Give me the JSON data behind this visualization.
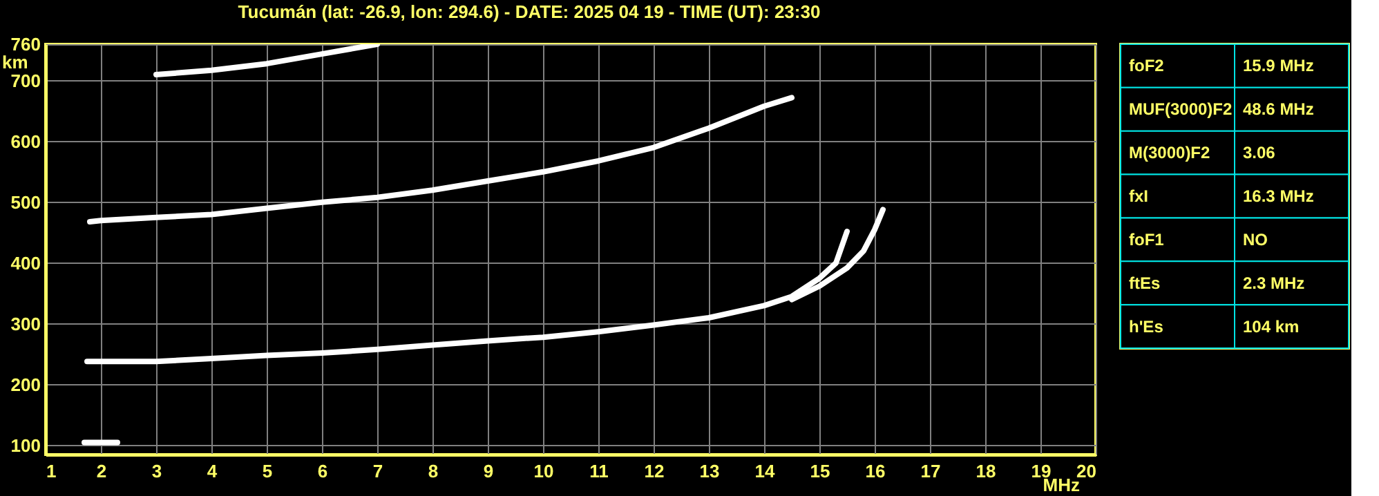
{
  "chart_data": [
    {
      "type": "line",
      "title": "Tucumán (lat: -26.9, lon: 294.6) - DATE: 2025 04 19 - TIME (UT): 23:30",
      "xlabel": "MHz",
      "ylabel": "km",
      "xlim": [
        1,
        20
      ],
      "xticks": [
        1,
        2,
        3,
        4,
        5,
        6,
        7,
        8,
        9,
        10,
        11,
        12,
        13,
        14,
        15,
        16,
        17,
        18,
        19,
        20
      ],
      "ylim": [
        85,
        760
      ],
      "yticks": [
        100,
        200,
        300,
        400,
        500,
        600,
        700,
        760
      ],
      "grid": true,
      "series": [
        {
          "color": "#ffffff",
          "x": [
            1.7,
            2.0,
            2.3
          ],
          "values": [
            105,
            105,
            105
          ]
        },
        {
          "color": "#ffffff",
          "x": [
            1.75,
            2,
            3,
            4,
            5,
            6,
            7,
            8,
            9,
            10,
            11,
            12,
            13,
            14,
            14.5,
            15,
            15.3,
            15.5
          ],
          "values": [
            238,
            238,
            238,
            243,
            248,
            252,
            258,
            265,
            272,
            278,
            287,
            298,
            310,
            330,
            345,
            375,
            400,
            452
          ]
        },
        {
          "color": "#ffffff",
          "x": [
            14.5,
            15,
            15.5,
            15.8,
            16,
            16.15
          ],
          "values": [
            340,
            362,
            392,
            420,
            455,
            488
          ]
        },
        {
          "color": "#ffffff",
          "x": [
            1.8,
            2,
            3,
            4,
            5,
            6,
            7,
            8,
            9,
            10,
            11,
            12,
            13,
            14,
            14.5
          ],
          "values": [
            468,
            470,
            475,
            480,
            490,
            500,
            508,
            520,
            535,
            550,
            568,
            590,
            622,
            658,
            672
          ]
        },
        {
          "color": "#ffffff",
          "x": [
            3,
            4,
            5,
            6,
            7
          ],
          "values": [
            710,
            717,
            728,
            744,
            760
          ]
        }
      ]
    },
    {
      "type": "other",
      "annotations": [
        "foF2",
        "15.9 MHz",
        "MUF(3000)F2",
        "48.6 MHz",
        "M(3000)F2",
        "3.06",
        "fxI",
        "16.3 MHz",
        "foF1",
        "NO",
        "ftEs",
        "2.3 MHz",
        "h'Es",
        "104 km"
      ]
    }
  ]
}
